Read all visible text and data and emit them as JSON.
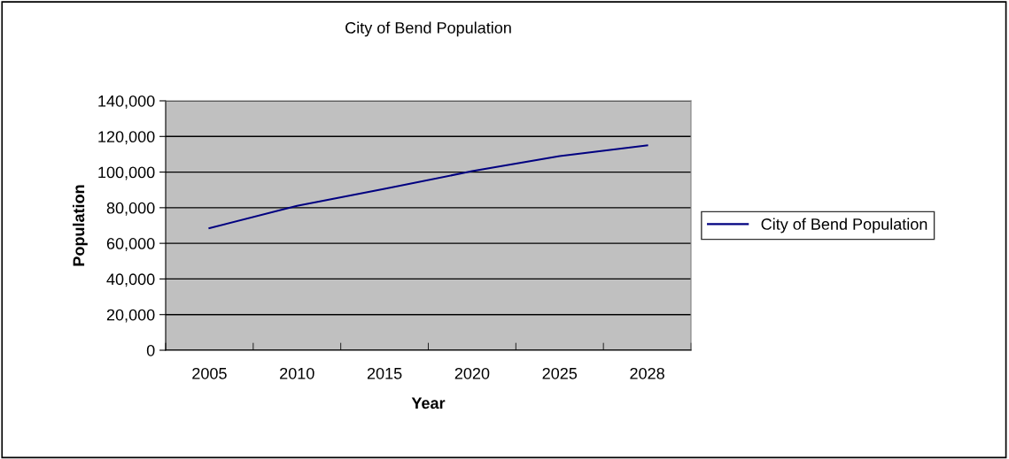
{
  "chart_data": {
    "type": "line",
    "title": "City of Bend Population",
    "xlabel": "Year",
    "ylabel": "Population",
    "categories": [
      "2005",
      "2010",
      "2015",
      "2020",
      "2025",
      "2028"
    ],
    "series": [
      {
        "name": "City of Bend Population",
        "color": "#000080",
        "values": [
          68500,
          81000,
          90600,
          100500,
          109000,
          115000
        ]
      }
    ],
    "ylim": [
      0,
      140000
    ],
    "yticks": [
      {
        "value": 0,
        "label": "0"
      },
      {
        "value": 20000,
        "label": "20,000"
      },
      {
        "value": 40000,
        "label": "40,000"
      },
      {
        "value": 60000,
        "label": "60,000"
      },
      {
        "value": 80000,
        "label": "80,000"
      },
      {
        "value": 100000,
        "label": "100,000"
      },
      {
        "value": 120000,
        "label": "120,000"
      },
      {
        "value": 140000,
        "label": "140,000"
      }
    ],
    "grid": "y",
    "legend": "right",
    "marker": "none",
    "line_style": "solid"
  }
}
